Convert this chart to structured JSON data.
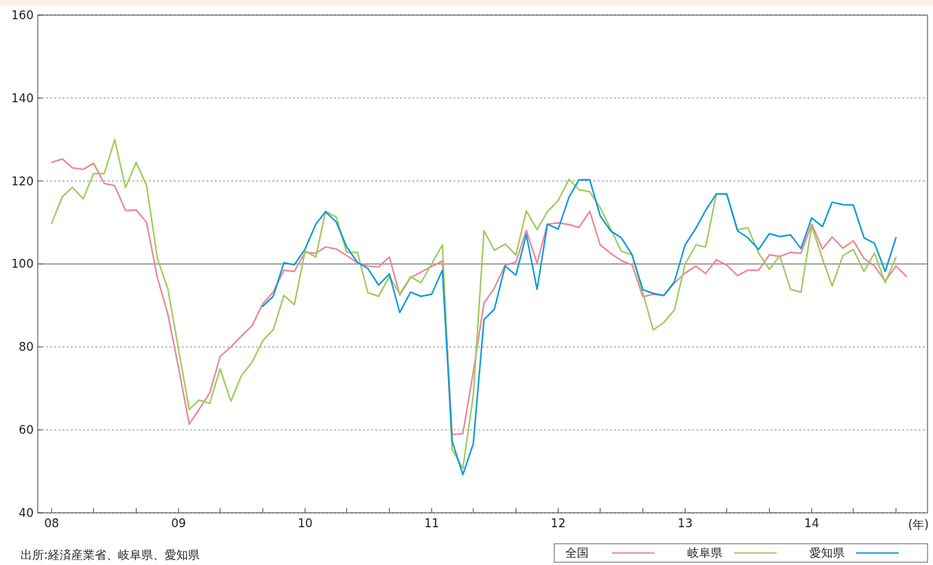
{
  "chart_data": {
    "type": "line",
    "xlabel": "(年)",
    "annotations": [
      "出所:経済産業省、岐阜県、愛知県"
    ],
    "x": [
      "2008-01",
      "2008-02",
      "2008-03",
      "2008-04",
      "2008-05",
      "2008-06",
      "2008-07",
      "2008-08",
      "2008-09",
      "2008-10",
      "2008-11",
      "2008-12",
      "2009-01",
      "2009-02",
      "2009-03",
      "2009-04",
      "2009-05",
      "2009-06",
      "2009-07",
      "2009-08",
      "2009-09",
      "2009-10",
      "2009-11",
      "2009-12",
      "2010-01",
      "2010-02",
      "2010-03",
      "2010-04",
      "2010-05",
      "2010-06",
      "2010-07",
      "2010-08",
      "2010-09",
      "2010-10",
      "2010-11",
      "2010-12",
      "2011-01",
      "2011-02",
      "2011-03",
      "2011-04",
      "2011-05",
      "2011-06",
      "2011-07",
      "2011-08",
      "2011-09",
      "2011-10",
      "2011-11",
      "2011-12",
      "2012-01",
      "2012-02",
      "2012-03",
      "2012-04",
      "2012-05",
      "2012-06",
      "2012-07",
      "2012-08",
      "2012-09",
      "2012-10",
      "2012-11",
      "2012-12",
      "2013-01",
      "2013-02",
      "2013-03",
      "2013-04",
      "2013-05",
      "2013-06",
      "2013-07",
      "2013-08",
      "2013-09",
      "2013-10",
      "2013-11",
      "2013-12",
      "2014-01",
      "2014-02",
      "2014-03",
      "2014-04",
      "2014-05",
      "2014-06",
      "2014-07",
      "2014-08",
      "2014-09",
      "2014-10"
    ],
    "series": [
      {
        "name": "全国",
        "color": "#f08398",
        "values": [
          124.5,
          125.3,
          123.2,
          122.8,
          124.3,
          119.4,
          118.9,
          112.9,
          113,
          110,
          96.7,
          88,
          75,
          61.4,
          64.9,
          68.9,
          77.7,
          80,
          82.6,
          85.1,
          90.4,
          93.2,
          98.5,
          98.2,
          102.8,
          102.6,
          104.1,
          103.6,
          102,
          100.3,
          99.5,
          99.3,
          101.7,
          92.5,
          96.7,
          98,
          99.4,
          100.7,
          58.9,
          59.1,
          74,
          90.6,
          94.2,
          99.7,
          100.5,
          108.1,
          100.2,
          109.6,
          109.9,
          109.5,
          108.8,
          112.7,
          104.6,
          102.5,
          100.8,
          99.8,
          92.1,
          92.7,
          92.4,
          95.4,
          97.8,
          99.5,
          97.7,
          101,
          99.7,
          97.2,
          98.5,
          98.5,
          102.2,
          101.8,
          102.8,
          102.6,
          109.6,
          103.6,
          106.5,
          103.8,
          105.6,
          101.3,
          99.5,
          95.9,
          99.5,
          97
        ]
      },
      {
        "name": "岐阜県",
        "color": "#9dcb5c",
        "values": [
          109.8,
          116.2,
          118.5,
          115.7,
          121.8,
          121.8,
          130,
          118.4,
          124.5,
          118.9,
          101.3,
          94.1,
          79.5,
          64.9,
          67.2,
          66.4,
          74.7,
          66.9,
          73,
          76.3,
          81.5,
          84.1,
          92.4,
          90.2,
          103.1,
          101.7,
          112.7,
          111.3,
          102.8,
          102.8,
          93.1,
          92.2,
          97,
          92.8,
          96.9,
          95.5,
          100,
          104.6,
          55.3,
          50.7,
          68.2,
          108,
          103.3,
          104.8,
          102.2,
          112.8,
          108.3,
          112.6,
          115.3,
          120.4,
          117.9,
          117.4,
          113.6,
          108.3,
          103.1,
          102.2,
          93,
          84.1,
          85.9,
          88.9,
          100,
          104.6,
          104.1,
          116.8,
          116.8,
          108.3,
          108.7,
          102.6,
          98.7,
          102,
          93.9,
          93.2,
          109.1,
          101.3,
          94.7,
          102,
          103.5,
          98.2,
          102.6,
          95.5,
          101.6,
          null
        ]
      },
      {
        "name": "愛知県",
        "color": "#0a9ad8",
        "values": [
          null,
          null,
          null,
          null,
          null,
          null,
          null,
          null,
          null,
          null,
          null,
          null,
          null,
          null,
          null,
          null,
          null,
          null,
          null,
          null,
          89.8,
          92.2,
          100.3,
          99.8,
          103.6,
          109.6,
          112.6,
          110.1,
          104.1,
          100.4,
          98.9,
          94.9,
          97.6,
          88.3,
          93.2,
          92.2,
          92.7,
          98.5,
          57.3,
          49.2,
          56.6,
          86.6,
          89.1,
          99.5,
          97.3,
          107.1,
          93.9,
          109.6,
          108.4,
          116.1,
          120.3,
          120.3,
          111.6,
          107.9,
          106.3,
          102.2,
          93.8,
          92.9,
          92.4,
          95.7,
          104.6,
          108.6,
          112.9,
          116.9,
          116.9,
          108,
          106.3,
          103.5,
          107.3,
          106.6,
          107,
          103.7,
          111.1,
          109,
          114.9,
          114.3,
          114.2,
          106.3,
          105,
          98.2,
          106.3,
          null
        ]
      }
    ],
    "xlim": [
      "2007-11-22",
      "2014-12-01"
    ],
    "xticks": [
      {
        "value": "2008-01",
        "label": "08"
      },
      {
        "value": "2008-05",
        "label": null
      },
      {
        "value": "2008-09",
        "label": null
      },
      {
        "value": "2009-01",
        "label": "09"
      },
      {
        "value": "2009-05",
        "label": null
      },
      {
        "value": "2009-09",
        "label": null
      },
      {
        "value": "2010-01",
        "label": "10"
      },
      {
        "value": "2010-05",
        "label": null
      },
      {
        "value": "2010-09",
        "label": null
      },
      {
        "value": "2011-01",
        "label": "11"
      },
      {
        "value": "2011-05",
        "label": null
      },
      {
        "value": "2011-09",
        "label": null
      },
      {
        "value": "2012-01",
        "label": "12"
      },
      {
        "value": "2012-05",
        "label": null
      },
      {
        "value": "2012-09",
        "label": null
      },
      {
        "value": "2013-01",
        "label": "13"
      },
      {
        "value": "2013-05",
        "label": null
      },
      {
        "value": "2013-09",
        "label": null
      },
      {
        "value": "2014-01",
        "label": "14"
      },
      {
        "value": "2014-05",
        "label": null
      },
      {
        "value": "2014-09",
        "label": null
      }
    ],
    "ylim": [
      40,
      160
    ],
    "yticks": [
      40,
      60,
      80,
      100,
      120,
      140,
      160
    ],
    "grid": "y",
    "legend": "bottom right",
    "ref_lines": [
      {
        "axis": "y",
        "value": 100,
        "color": "#808080",
        "line_style": "solid"
      }
    ]
  }
}
